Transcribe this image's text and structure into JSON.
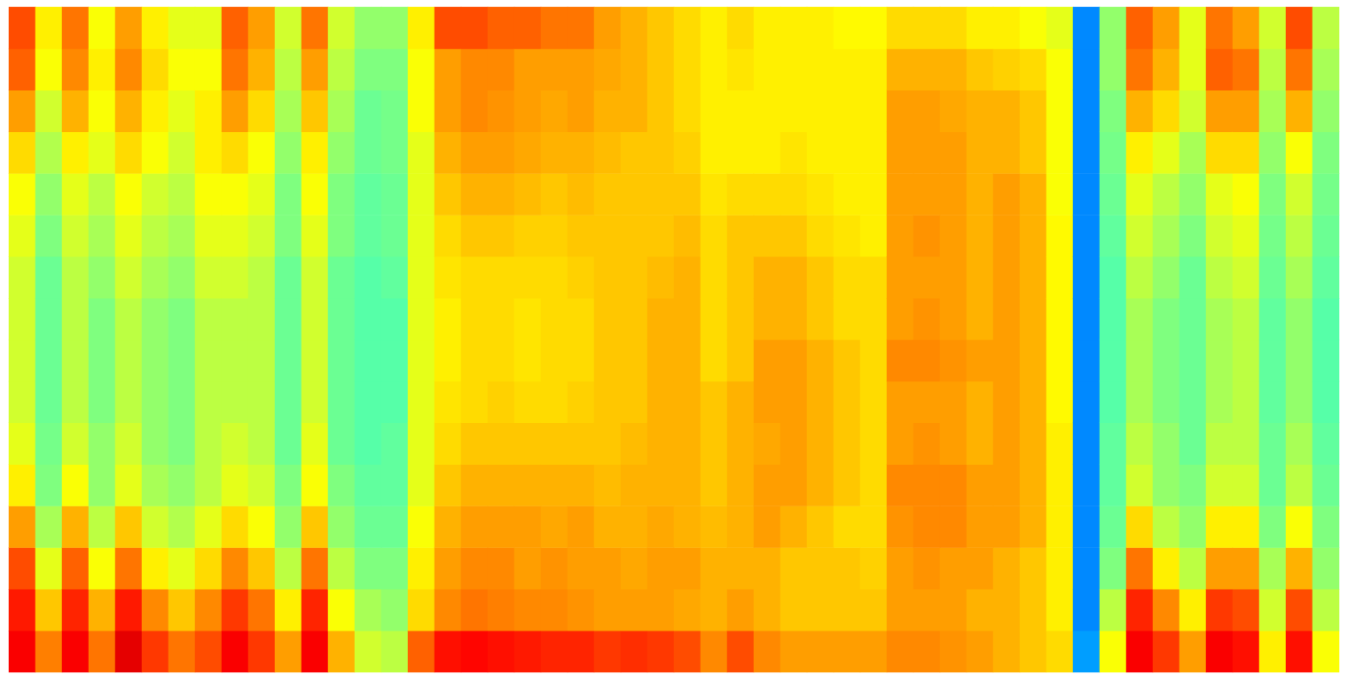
{
  "chart_data": {
    "type": "heatmap",
    "tick_labels": false,
    "color_range": [
      0,
      100
    ],
    "values": [
      [
        88,
        85,
        80,
        72,
        64,
        60,
        58,
        58,
        58,
        58,
        60,
        62,
        66,
        72,
        78,
        80
      ],
      [
        75,
        68,
        60,
        54,
        50,
        49,
        48,
        48,
        48,
        48,
        50,
        52,
        55,
        58,
        62,
        64
      ],
      [
        88,
        84,
        78,
        70,
        62,
        58,
        56,
        56,
        56,
        56,
        58,
        60,
        64,
        70,
        74,
        76
      ],
      [
        76,
        70,
        62,
        56,
        52,
        52,
        50,
        50,
        50,
        52,
        54,
        56,
        60,
        62,
        64,
        62
      ],
      [
        90,
        85,
        76,
        68,
        60,
        58,
        56,
        56,
        56,
        58,
        60,
        62,
        66,
        70,
        74,
        72
      ],
      [
        82,
        74,
        64,
        58,
        54,
        52,
        52,
        52,
        52,
        54,
        56,
        58,
        62,
        64,
        66,
        64
      ],
      [
        76,
        68,
        60,
        55,
        52,
        50,
        50,
        50,
        50,
        52,
        54,
        56,
        58,
        60,
        62,
        60
      ],
      [
        80,
        74,
        66,
        60,
        56,
        56,
        56,
        56,
        56,
        58,
        60,
        62,
        64,
        64,
        62,
        60
      ],
      [
        88,
        82,
        74,
        66,
        60,
        58,
        56,
        56,
        56,
        58,
        60,
        62,
        66,
        72,
        76,
        78
      ],
      [
        82,
        76,
        68,
        62,
        58,
        56,
        56,
        56,
        56,
        56,
        58,
        60,
        62,
        66,
        70,
        72
      ],
      [
        72,
        64,
        56,
        52,
        50,
        48,
        48,
        48,
        48,
        48,
        50,
        50,
        52,
        54,
        56,
        58
      ],
      [
        88,
        84,
        76,
        68,
        62,
        60,
        58,
        58,
        58,
        58,
        60,
        62,
        64,
        68,
        72,
        76
      ],
      [
        70,
        62,
        56,
        52,
        50,
        48,
        48,
        48,
        48,
        48,
        50,
        50,
        52,
        54,
        56,
        58
      ],
      [
        58,
        54,
        50,
        48,
        47,
        46,
        46,
        46,
        46,
        46,
        47,
        47,
        48,
        48,
        50,
        52
      ],
      [
        56,
        52,
        50,
        48,
        47,
        47,
        46,
        46,
        46,
        47,
        48,
        48,
        49,
        49,
        50,
        52
      ],
      [
        78,
        66,
        64,
        62,
        60,
        60,
        60,
        60,
        60,
        60,
        60,
        60,
        60,
        62,
        62,
        64
      ],
      [
        86,
        74,
        72,
        70,
        68,
        66,
        65,
        64,
        64,
        65,
        66,
        68,
        70,
        72,
        72,
        80
      ],
      [
        87,
        76,
        74,
        72,
        70,
        68,
        66,
        66,
        66,
        66,
        68,
        70,
        72,
        74,
        74,
        80
      ],
      [
        86,
        75,
        74,
        72,
        70,
        68,
        67,
        66,
        66,
        66,
        68,
        70,
        72,
        73,
        74,
        78
      ],
      [
        85,
        74,
        72,
        72,
        70,
        68,
        66,
        65,
        65,
        66,
        67,
        69,
        71,
        72,
        72,
        78
      ],
      [
        84,
        74,
        73,
        71,
        70,
        68,
        66,
        66,
        66,
        66,
        67,
        68,
        70,
        71,
        72,
        76
      ],
      [
        84,
        73,
        72,
        72,
        70,
        68,
        67,
        66,
        66,
        67,
        68,
        69,
        70,
        72,
        72,
        76
      ],
      [
        82,
        72,
        72,
        70,
        69,
        68,
        68,
        68,
        68,
        68,
        68,
        68,
        69,
        70,
        71,
        72
      ],
      [
        83,
        72,
        71,
        70,
        70,
        69,
        68,
        68,
        68,
        68,
        68,
        68,
        68,
        70,
        70,
        70
      ],
      [
        82,
        72,
        72,
        71,
        70,
        70,
        70,
        70,
        70,
        69,
        68,
        68,
        68,
        68,
        68,
        68
      ],
      [
        80,
        71,
        72,
        70,
        70,
        70,
        70,
        70,
        70,
        70,
        69,
        68,
        67,
        66,
        66,
        66
      ],
      [
        74,
        70,
        70,
        69,
        68,
        68,
        68,
        66,
        66,
        66,
        66,
        65,
        64,
        64,
        64,
        64
      ],
      [
        80,
        72,
        70,
        70,
        70,
        70,
        70,
        68,
        68,
        68,
        68,
        66,
        64,
        64,
        65,
        66
      ],
      [
        74,
        70,
        70,
        72,
        72,
        71,
        72,
        72,
        70,
        70,
        68,
        66,
        64,
        64,
        64,
        64
      ],
      [
        72,
        68,
        68,
        70,
        72,
        72,
        72,
        72,
        70,
        70,
        68,
        66,
        65,
        64,
        64,
        64
      ],
      [
        72,
        68,
        68,
        68,
        70,
        70,
        70,
        70,
        68,
        68,
        66,
        65,
        64,
        64,
        64,
        64
      ],
      [
        72,
        68,
        68,
        66,
        68,
        68,
        68,
        68,
        66,
        66,
        65,
        64,
        64,
        64,
        64,
        63
      ],
      [
        72,
        68,
        67,
        66,
        66,
        66,
        66,
        66,
        66,
        66,
        64,
        64,
        64,
        64,
        64,
        63
      ],
      [
        74,
        72,
        72,
        73,
        74,
        72,
        72,
        74,
        72,
        72,
        72,
        72,
        72,
        72,
        70,
        66
      ],
      [
        74,
        72,
        73,
        74,
        74,
        73,
        72,
        74,
        73,
        72,
        73,
        72,
        72,
        72,
        70,
        66
      ],
      [
        73,
        72,
        72,
        74,
        74,
        72,
        72,
        73,
        72,
        72,
        72,
        72,
        72,
        71,
        70,
        66
      ],
      [
        72,
        70,
        72,
        72,
        72,
        70,
        70,
        72,
        70,
        70,
        70,
        70,
        70,
        70,
        68,
        64
      ],
      [
        70,
        70,
        70,
        72,
        72,
        72,
        72,
        72,
        72,
        72,
        72,
        72,
        70,
        70,
        67,
        64
      ],
      [
        68,
        68,
        68,
        70,
        70,
        70,
        70,
        70,
        70,
        70,
        70,
        70,
        68,
        68,
        66,
        62
      ],
      [
        66,
        64,
        64,
        64,
        64,
        64,
        63,
        63,
        63,
        63,
        63,
        62,
        62,
        62,
        62,
        60
      ],
      [
        28,
        26,
        26,
        26,
        26,
        26,
        26,
        26,
        26,
        26,
        26,
        26,
        26,
        26,
        26,
        26
      ],
      [
        62,
        56,
        50,
        48,
        47,
        47,
        46,
        46,
        46,
        46,
        47,
        48,
        49,
        50,
        52,
        52
      ],
      [
        88,
        84,
        76,
        66,
        58,
        56,
        54,
        54,
        54,
        56,
        58,
        60,
        64,
        70,
        76,
        78
      ],
      [
        82,
        74,
        64,
        56,
        52,
        52,
        50,
        50,
        50,
        52,
        54,
        56,
        60,
        66,
        70,
        72
      ],
      [
        72,
        64,
        56,
        52,
        50,
        48,
        48,
        48,
        48,
        48,
        50,
        52,
        54,
        58,
        60,
        60
      ],
      [
        88,
        82,
        72,
        64,
        58,
        56,
        54,
        54,
        54,
        56,
        58,
        60,
        66,
        72,
        78,
        76
      ],
      [
        86,
        80,
        72,
        64,
        58,
        56,
        56,
        56,
        56,
        58,
        60,
        62,
        66,
        72,
        76,
        72
      ],
      [
        64,
        58,
        54,
        50,
        48,
        48,
        47,
        47,
        47,
        48,
        49,
        50,
        52,
        54,
        56,
        58
      ],
      [
        86,
        80,
        70,
        62,
        56,
        54,
        52,
        52,
        52,
        54,
        56,
        58,
        62,
        70,
        76,
        80
      ],
      [
        62,
        56,
        52,
        50,
        48,
        47,
        46,
        46,
        46,
        47,
        48,
        49,
        50,
        52,
        54,
        56
      ]
    ]
  }
}
